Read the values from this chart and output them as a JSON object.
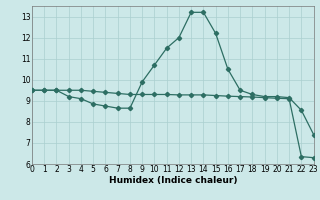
{
  "line1_x": [
    0,
    1,
    2,
    3,
    4,
    5,
    6,
    7,
    8,
    9,
    10,
    11,
    12,
    13,
    14,
    15,
    16,
    17,
    18,
    19,
    20,
    21,
    22,
    23
  ],
  "line1_y": [
    9.5,
    9.5,
    9.5,
    9.2,
    9.1,
    8.85,
    8.75,
    8.65,
    8.65,
    9.9,
    10.7,
    11.5,
    12.0,
    13.2,
    13.2,
    12.2,
    10.5,
    9.5,
    9.3,
    9.2,
    9.2,
    9.15,
    8.55,
    7.4
  ],
  "line2_x": [
    0,
    1,
    2,
    3,
    4,
    5,
    6,
    7,
    8,
    9,
    10,
    11,
    12,
    13,
    14,
    15,
    16,
    17,
    18,
    19,
    20,
    21,
    22,
    23
  ],
  "line2_y": [
    9.5,
    9.5,
    9.5,
    9.5,
    9.5,
    9.45,
    9.4,
    9.35,
    9.3,
    9.3,
    9.3,
    9.3,
    9.28,
    9.28,
    9.28,
    9.25,
    9.22,
    9.2,
    9.18,
    9.15,
    9.12,
    9.1,
    6.35,
    6.3
  ],
  "line_color": "#2d6e63",
  "bg_color": "#cce8e8",
  "grid_color": "#aacfcf",
  "xlabel": "Humidex (Indice chaleur)",
  "xlim": [
    0,
    23
  ],
  "ylim": [
    6,
    13.5
  ],
  "yticks": [
    6,
    7,
    8,
    9,
    10,
    11,
    12,
    13
  ],
  "xticks": [
    0,
    1,
    2,
    3,
    4,
    5,
    6,
    7,
    8,
    9,
    10,
    11,
    12,
    13,
    14,
    15,
    16,
    17,
    18,
    19,
    20,
    21,
    22,
    23
  ],
  "marker": "D",
  "marker_size": 2.2,
  "linewidth": 0.9,
  "tick_fontsize": 5.5,
  "xlabel_fontsize": 6.5
}
